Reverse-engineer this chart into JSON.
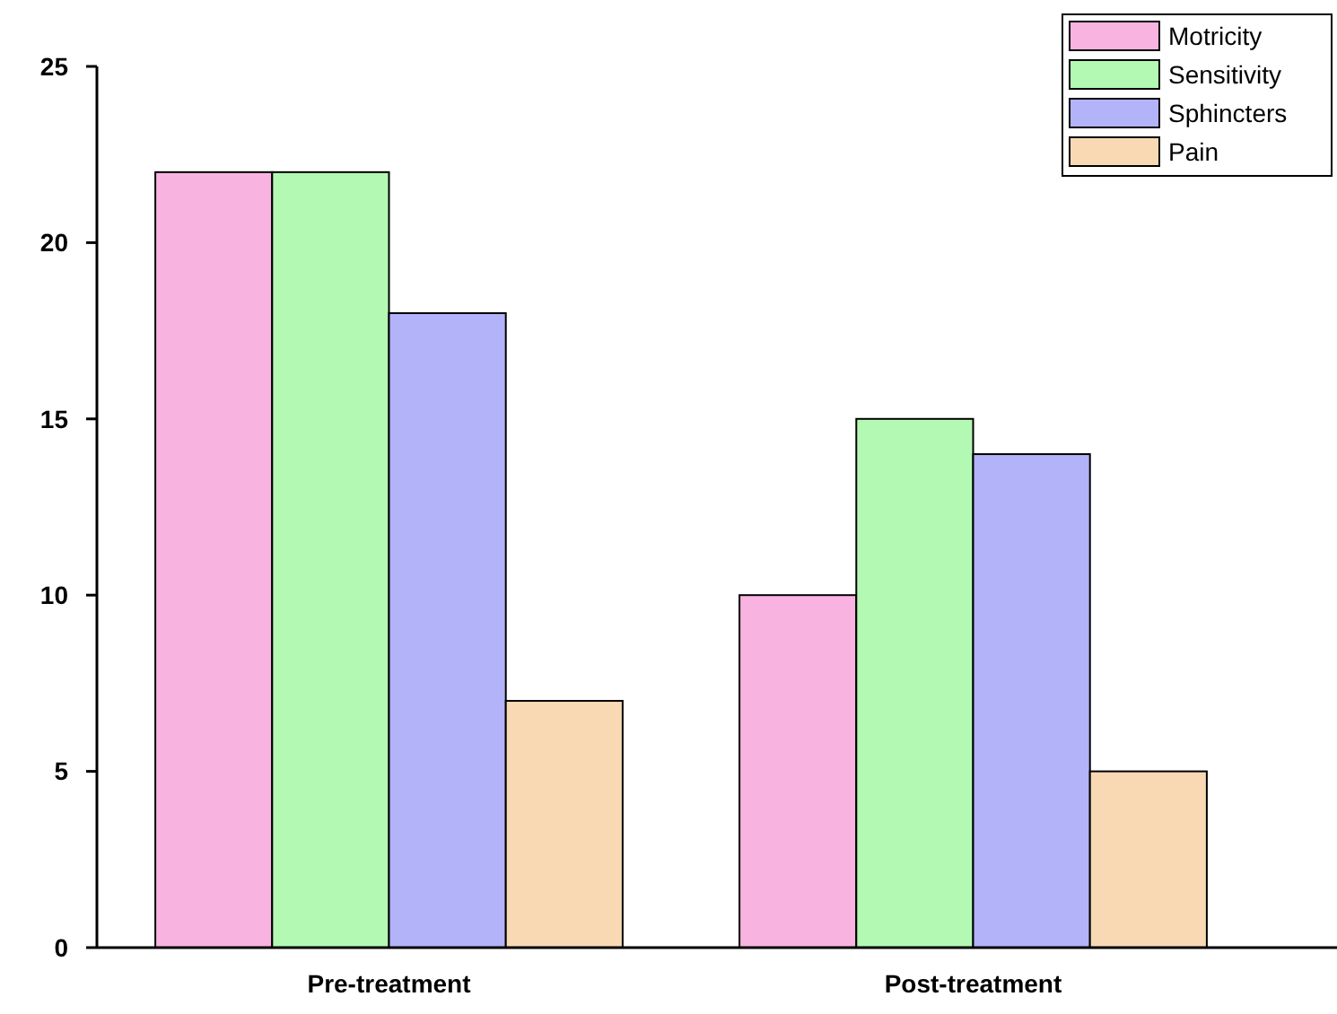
{
  "chart_data": {
    "type": "bar",
    "categories": [
      "Pre-treatment",
      "Post-treatment"
    ],
    "series": [
      {
        "name": "Motricity",
        "color": "#f9b3e1",
        "values": [
          22,
          10
        ]
      },
      {
        "name": "Sensitivity",
        "color": "#b3f9b3",
        "values": [
          22,
          15
        ]
      },
      {
        "name": "Sphincters",
        "color": "#b3b3f9",
        "values": [
          18,
          14
        ]
      },
      {
        "name": "Pain",
        "color": "#f9d9b3",
        "values": [
          7,
          5
        ]
      }
    ],
    "ylim": [
      0,
      25
    ],
    "yticks": [
      0,
      5,
      10,
      15,
      20,
      25
    ],
    "grid": false,
    "legend": "top right"
  }
}
